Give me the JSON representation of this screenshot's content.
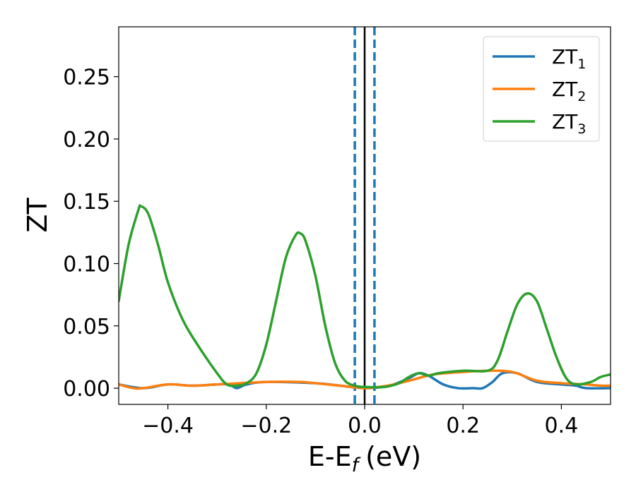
{
  "chart_data": {
    "type": "line",
    "xlabel": "E-E",
    "xlabel_sub": "f",
    "xlabel_unit": "(eV)",
    "ylabel": "ZT",
    "xlim": [
      -0.5,
      0.5
    ],
    "ylim": [
      -0.013,
      0.29
    ],
    "xticks": [
      -0.4,
      -0.2,
      0.0,
      0.2,
      0.4
    ],
    "xtick_labels": [
      "−0.4",
      "−0.2",
      "0.0",
      "0.2",
      "0.4"
    ],
    "yticks": [
      0.0,
      0.05,
      0.1,
      0.15,
      0.2,
      0.25
    ],
    "ytick_labels": [
      "0.00",
      "0.05",
      "0.10",
      "0.15",
      "0.20",
      "0.25"
    ],
    "grid": false,
    "legend_position": "top-right",
    "vlines": [
      {
        "x": -0.02,
        "style": "dashed",
        "color": "#1f77b4"
      },
      {
        "x": 0.0,
        "style": "solid",
        "color": "#000000"
      },
      {
        "x": 0.02,
        "style": "dashed",
        "color": "#1f77b4"
      }
    ],
    "series": [
      {
        "name": "ZT",
        "name_sub": "1",
        "color": "#1f77b4",
        "points": [
          [
            -0.5,
            0.003
          ],
          [
            -0.45,
            0.0
          ],
          [
            -0.4,
            0.003
          ],
          [
            -0.35,
            0.002
          ],
          [
            -0.3,
            0.003
          ],
          [
            -0.275,
            0.003
          ],
          [
            -0.26,
            0.0
          ],
          [
            -0.24,
            0.003
          ],
          [
            -0.2,
            0.005
          ],
          [
            -0.1,
            0.004
          ],
          [
            -0.05,
            0.002
          ],
          [
            0.0,
            0.0
          ],
          [
            0.05,
            0.002
          ],
          [
            0.09,
            0.008
          ],
          [
            0.11,
            0.012
          ],
          [
            0.13,
            0.01
          ],
          [
            0.16,
            0.003
          ],
          [
            0.19,
            0.0
          ],
          [
            0.22,
            0.0
          ],
          [
            0.24,
            0.0
          ],
          [
            0.26,
            0.005
          ],
          [
            0.28,
            0.012
          ],
          [
            0.31,
            0.012
          ],
          [
            0.35,
            0.005
          ],
          [
            0.4,
            0.003
          ],
          [
            0.43,
            0.002
          ],
          [
            0.45,
            0.0
          ],
          [
            0.5,
            0.0
          ]
        ]
      },
      {
        "name": "ZT",
        "name_sub": "2",
        "color": "#ff7f0e",
        "points": [
          [
            -0.5,
            0.003
          ],
          [
            -0.47,
            0.0
          ],
          [
            -0.45,
            0.0
          ],
          [
            -0.4,
            0.003
          ],
          [
            -0.35,
            0.002
          ],
          [
            -0.3,
            0.003
          ],
          [
            -0.2,
            0.005
          ],
          [
            -0.13,
            0.005
          ],
          [
            -0.1,
            0.004
          ],
          [
            -0.05,
            0.002
          ],
          [
            0.0,
            0.0
          ],
          [
            0.03,
            0.001
          ],
          [
            0.06,
            0.003
          ],
          [
            0.1,
            0.007
          ],
          [
            0.14,
            0.011
          ],
          [
            0.2,
            0.013
          ],
          [
            0.25,
            0.014
          ],
          [
            0.3,
            0.013
          ],
          [
            0.35,
            0.006
          ],
          [
            0.4,
            0.004
          ],
          [
            0.45,
            0.003
          ],
          [
            0.48,
            0.002
          ],
          [
            0.5,
            0.002
          ]
        ]
      },
      {
        "name": "ZT",
        "name_sub": "3",
        "color": "#2ca02c",
        "points": [
          [
            -0.5,
            0.07
          ],
          [
            -0.48,
            0.115
          ],
          [
            -0.46,
            0.143
          ],
          [
            -0.455,
            0.146
          ],
          [
            -0.44,
            0.14
          ],
          [
            -0.42,
            0.115
          ],
          [
            -0.4,
            0.085
          ],
          [
            -0.37,
            0.055
          ],
          [
            -0.34,
            0.035
          ],
          [
            -0.3,
            0.012
          ],
          [
            -0.28,
            0.003
          ],
          [
            -0.26,
            0.002
          ],
          [
            -0.24,
            0.004
          ],
          [
            -0.22,
            0.012
          ],
          [
            -0.2,
            0.035
          ],
          [
            -0.18,
            0.07
          ],
          [
            -0.16,
            0.105
          ],
          [
            -0.14,
            0.123
          ],
          [
            -0.13,
            0.124
          ],
          [
            -0.12,
            0.118
          ],
          [
            -0.1,
            0.09
          ],
          [
            -0.08,
            0.05
          ],
          [
            -0.06,
            0.02
          ],
          [
            -0.04,
            0.006
          ],
          [
            -0.02,
            0.002
          ],
          [
            0.0,
            0.001
          ],
          [
            0.04,
            0.001
          ],
          [
            0.07,
            0.004
          ],
          [
            0.09,
            0.009
          ],
          [
            0.11,
            0.012
          ],
          [
            0.13,
            0.01
          ],
          [
            0.15,
            0.012
          ],
          [
            0.2,
            0.014
          ],
          [
            0.25,
            0.014
          ],
          [
            0.27,
            0.022
          ],
          [
            0.29,
            0.045
          ],
          [
            0.31,
            0.067
          ],
          [
            0.33,
            0.076
          ],
          [
            0.35,
            0.07
          ],
          [
            0.37,
            0.048
          ],
          [
            0.39,
            0.025
          ],
          [
            0.41,
            0.008
          ],
          [
            0.43,
            0.003
          ],
          [
            0.46,
            0.005
          ],
          [
            0.48,
            0.009
          ],
          [
            0.5,
            0.011
          ]
        ]
      }
    ]
  }
}
